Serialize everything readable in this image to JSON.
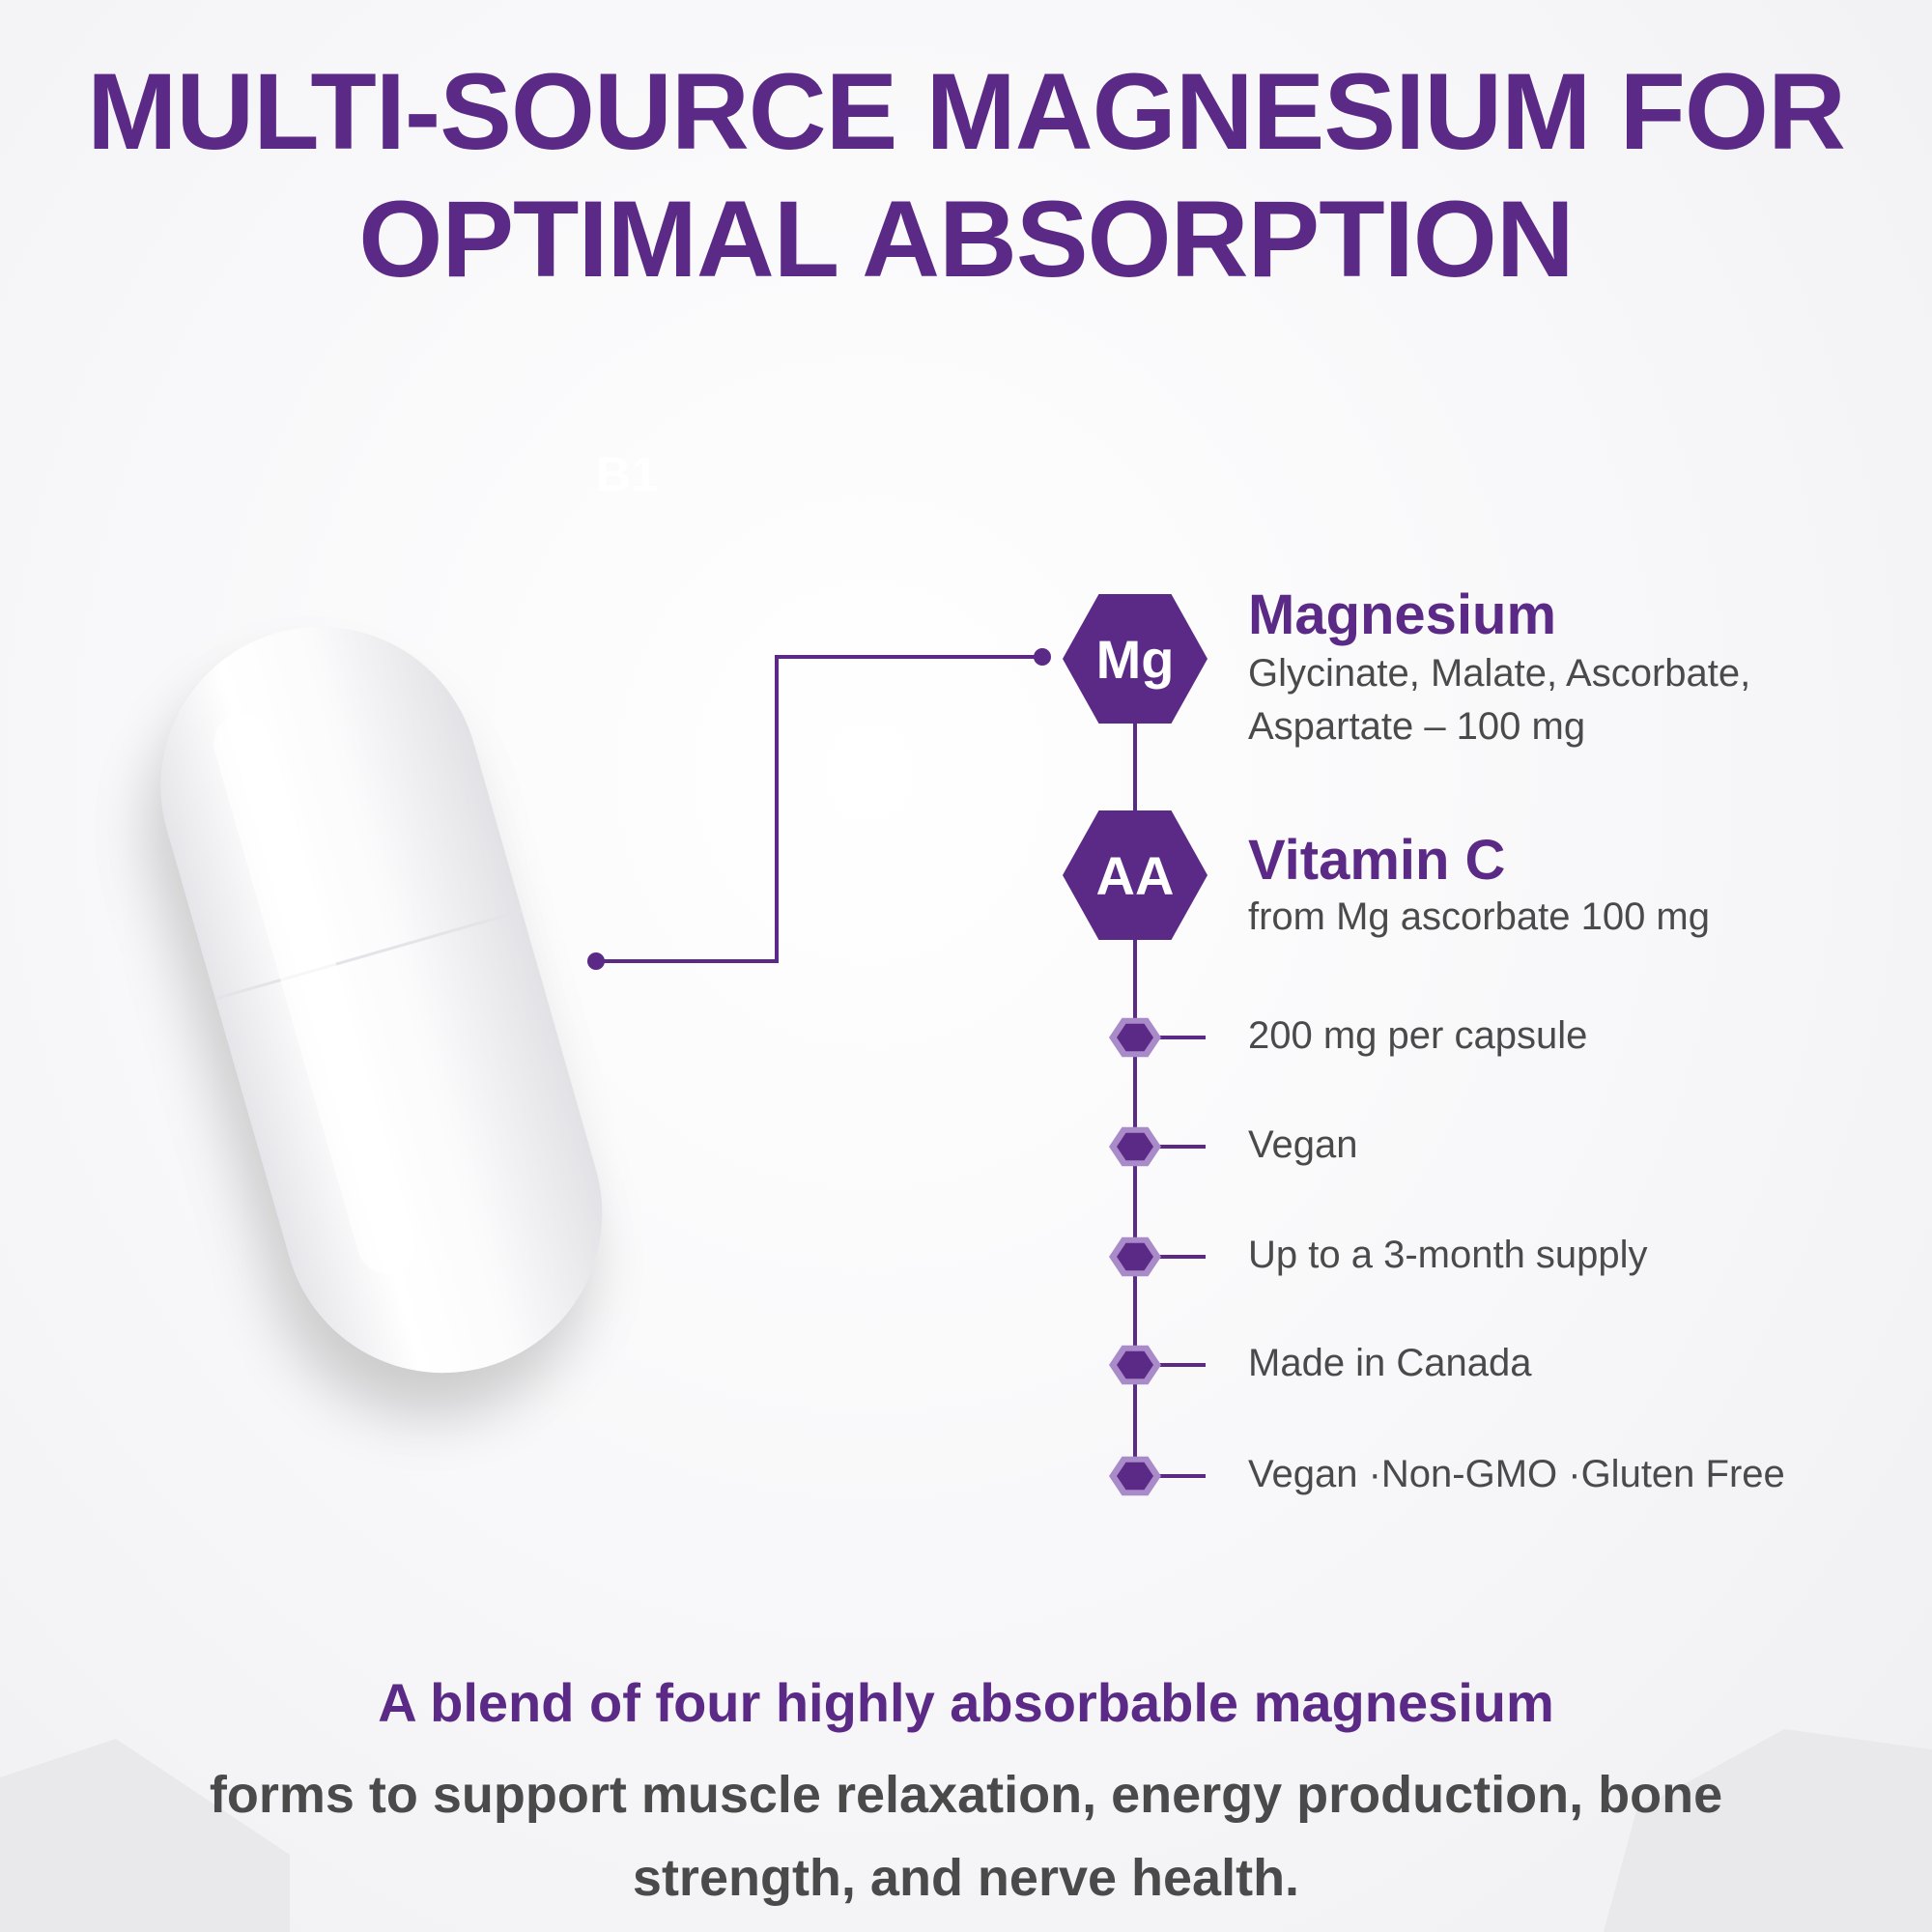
{
  "title": {
    "line1": "MULTI-SOURCE MAGNESIUM FOR",
    "line2": "OPTIMAL ABSORPTION"
  },
  "faint_label": "B1",
  "colors": {
    "accent": "#5b2a86",
    "text": "#4a4a4a",
    "bullet_ring": "#a98bc9"
  },
  "ingredients": [
    {
      "badge": "Mg",
      "name": "Magnesium",
      "detail_line1": "Glycinate, Malate, Ascorbate,",
      "detail_line2": "Aspartate – 100 mg"
    },
    {
      "badge": "AA",
      "name": "Vitamin C",
      "detail_line1": "from Mg ascorbate 100 mg"
    }
  ],
  "features": [
    "200 mg per capsule",
    "Vegan",
    "Up to a 3-month supply",
    "Made in Canada",
    "Vegan ·Non-GMO ·Gluten Free"
  ],
  "bottom": {
    "headline": "A blend of four highly absorbable magnesium",
    "body_line1": "forms to support muscle relaxation, energy production, bone",
    "body_line2": "strength, and nerve health."
  }
}
